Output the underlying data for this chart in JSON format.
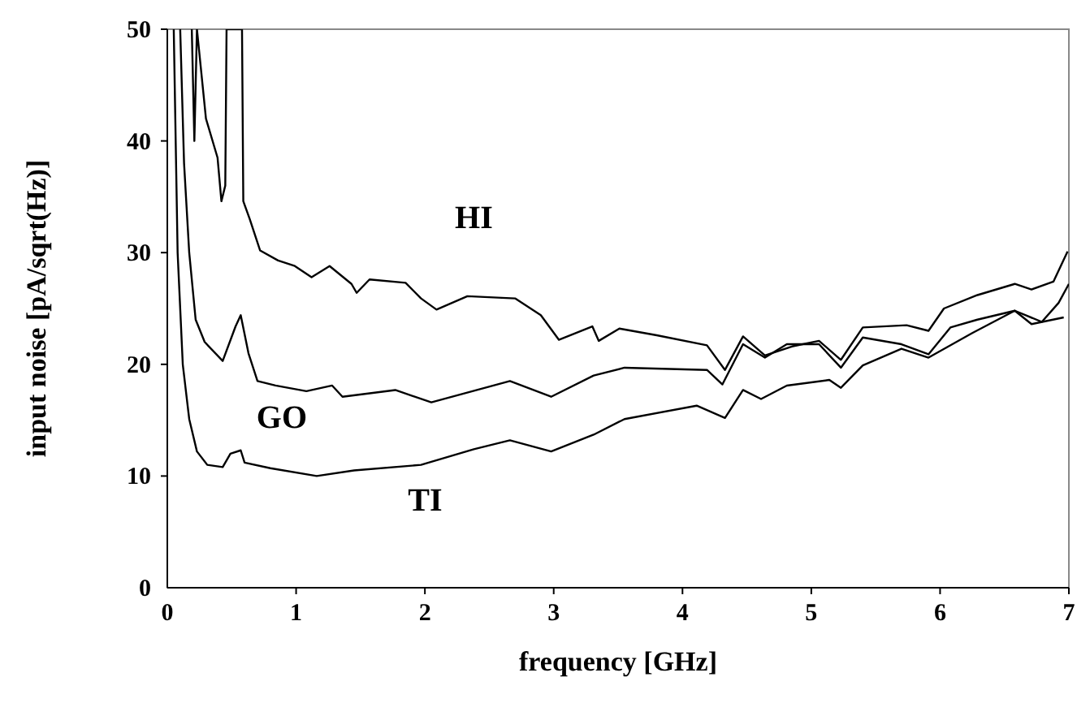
{
  "chart_data": {
    "type": "line",
    "xlabel": "frequency [GHz]",
    "ylabel": "input noise [pA/sqrt(Hz)]",
    "xlim": [
      0,
      7
    ],
    "ylim": [
      0,
      50
    ],
    "xticks": [
      0,
      1,
      2,
      3,
      4,
      5,
      6,
      7
    ],
    "yticks": [
      0,
      10,
      20,
      30,
      40,
      50
    ],
    "grid": false,
    "legend": false,
    "marker": "none",
    "line_style": "solid",
    "series": [
      {
        "name": "HI",
        "color": "#000000",
        "x": [
          0.19,
          0.21,
          0.23,
          0.3,
          0.39,
          0.42,
          0.45,
          0.46,
          0.58,
          0.59,
          0.64,
          0.72,
          0.86,
          0.99,
          1.12,
          1.26,
          1.43,
          1.47,
          1.57,
          1.85,
          1.97,
          2.09,
          2.33,
          2.7,
          2.9,
          3.04,
          3.3,
          3.35,
          3.51,
          3.8,
          4.19,
          4.33,
          4.47,
          4.64,
          4.85,
          5.06,
          5.23,
          5.4,
          5.74,
          5.91,
          6.03,
          6.29,
          6.58,
          6.71,
          6.88,
          6.99
        ],
        "values": [
          50,
          40,
          50,
          42,
          38.5,
          34.6,
          36,
          50,
          50,
          34.6,
          33,
          30.2,
          29.3,
          28.8,
          27.8,
          28.8,
          27.2,
          26.4,
          27.6,
          27.3,
          25.9,
          24.9,
          26.1,
          25.9,
          24.4,
          22.2,
          23.4,
          22.1,
          23.2,
          22.6,
          21.7,
          19.5,
          22.5,
          20.8,
          21.6,
          22.1,
          20.4,
          23.3,
          23.5,
          23,
          25,
          26.2,
          27.2,
          26.7,
          27.4,
          30.1
        ]
      },
      {
        "name": "GO",
        "color": "#000000",
        "x": [
          0.1,
          0.13,
          0.17,
          0.22,
          0.29,
          0.43,
          0.53,
          0.57,
          0.63,
          0.7,
          0.84,
          1.08,
          1.28,
          1.36,
          1.77,
          2.05,
          2.66,
          2.98,
          3.31,
          3.55,
          4.19,
          4.31,
          4.47,
          4.64,
          4.81,
          5.06,
          5.23,
          5.4,
          5.7,
          5.91,
          6.08,
          6.29,
          6.58,
          6.79,
          6.92,
          7.0
        ],
        "values": [
          50,
          38,
          30,
          24,
          22,
          20.3,
          23.4,
          24.4,
          21,
          18.5,
          18.1,
          17.6,
          18.1,
          17.1,
          17.7,
          16.6,
          18.5,
          17.1,
          19,
          19.7,
          19.5,
          18.2,
          21.8,
          20.6,
          21.8,
          21.8,
          19.7,
          22.4,
          21.8,
          20.9,
          23.3,
          24,
          24.8,
          23.8,
          25.5,
          27.2
        ]
      },
      {
        "name": "TI",
        "color": "#000000",
        "x": [
          0.05,
          0.08,
          0.12,
          0.17,
          0.23,
          0.31,
          0.43,
          0.49,
          0.57,
          0.6,
          0.8,
          1.16,
          1.45,
          1.97,
          2.38,
          2.66,
          2.98,
          3.31,
          3.55,
          4.11,
          4.33,
          4.47,
          4.61,
          4.81,
          5.14,
          5.23,
          5.4,
          5.7,
          5.91,
          6.25,
          6.58,
          6.71,
          6.96
        ],
        "values": [
          50,
          30,
          20,
          15.1,
          12.2,
          11,
          10.8,
          12,
          12.3,
          11.2,
          10.7,
          10,
          10.5,
          11,
          12.4,
          13.2,
          12.2,
          13.7,
          15.1,
          16.3,
          15.2,
          17.7,
          16.9,
          18.1,
          18.6,
          17.9,
          19.9,
          21.4,
          20.6,
          22.8,
          24.8,
          23.6,
          24.2
        ]
      }
    ]
  }
}
